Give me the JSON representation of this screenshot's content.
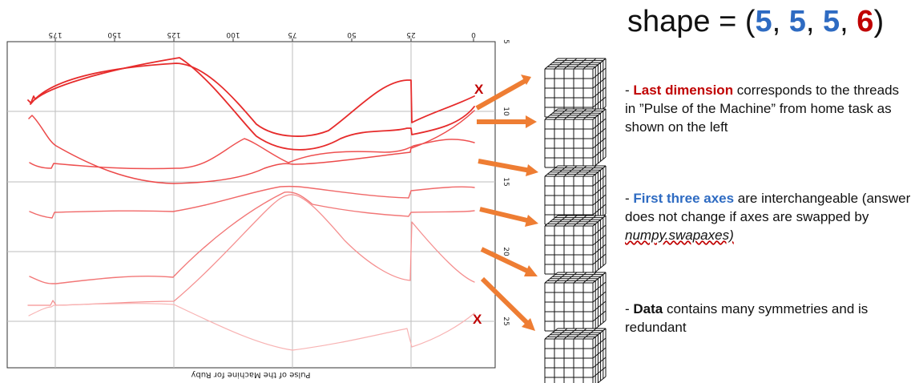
{
  "title": {
    "prefix": "shape = (",
    "d1": "5",
    "sep1": ", ",
    "d2": "5",
    "sep2": ", ",
    "d3": "5",
    "sep3": ", ",
    "d4": "6",
    "suffix": ")"
  },
  "plot": {
    "xlabel": "Pulse of the Machine for Ruby",
    "x_ticks": [
      "175",
      "150",
      "125",
      "100",
      "75",
      "50",
      "25",
      "0"
    ],
    "y_ticks": [
      "5",
      "10",
      "15",
      "20",
      "25"
    ],
    "x_marks": [
      "X",
      "X"
    ]
  },
  "notes": [
    {
      "pre": "- ",
      "em": "Last dimension",
      "rest": " corresponds to the threads in ”Pulse of the Machine” from home task as shown on the left"
    },
    {
      "pre": "- ",
      "em": "First three axes",
      "rest": " are interchangeable (answer does not change if axes are swapped by ",
      "link": "numpy.swapaxes)"
    },
    {
      "pre": "- ",
      "em": "Data",
      "rest": " contains many symmetries and is redundant"
    }
  ],
  "colors": {
    "line": "#e63a3a",
    "arrow": "#ee7d33",
    "mark": "#c00000",
    "blue": "#2e6bc2"
  }
}
